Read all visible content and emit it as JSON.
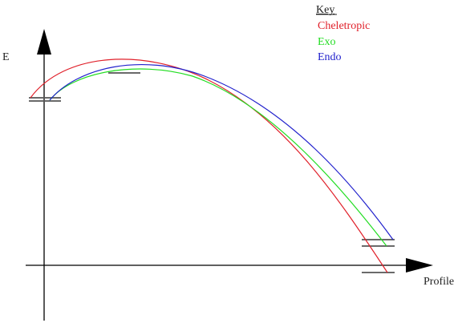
{
  "diagram": {
    "y_axis_label": "E",
    "x_axis_label": "Profile",
    "key": {
      "title": "Key",
      "items": [
        {
          "label": "Cheletropic",
          "color": "#e0202a"
        },
        {
          "label": "Exo",
          "color": "#22dd22"
        },
        {
          "label": "Endo",
          "color": "#2020cc"
        }
      ]
    }
  }
}
